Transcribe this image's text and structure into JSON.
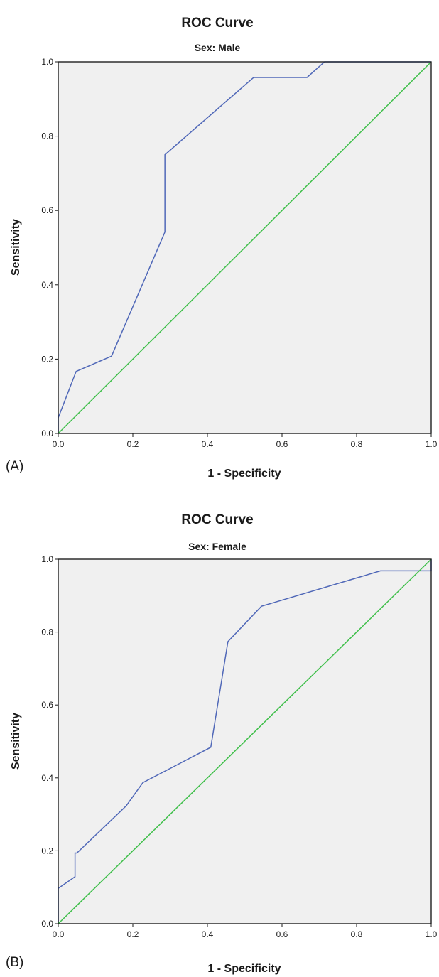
{
  "figure": {
    "panels": [
      {
        "label": "(A)"
      },
      {
        "label": "(B)"
      }
    ]
  },
  "chart_data": [
    {
      "type": "line",
      "title": "ROC Curve",
      "subtitle": "Sex: Male",
      "xlabel": "1 - Specificity",
      "ylabel": "Sensitivity",
      "xlim": [
        0,
        1
      ],
      "ylim": [
        0,
        1
      ],
      "xticks": [
        "0.0",
        "0.2",
        "0.4",
        "0.6",
        "0.8",
        "1.0"
      ],
      "yticks": [
        "0.0",
        "0.2",
        "0.4",
        "0.6",
        "0.8",
        "1.0"
      ],
      "grid": false,
      "colors": {
        "roc": "#5068b8",
        "reference": "#3fbf4a",
        "background": "#f0f0f0"
      },
      "series": [
        {
          "x": [
            0.0,
            0.0,
            0.048,
            0.143,
            0.286,
            0.286,
            0.524,
            0.667,
            0.714,
            1.0
          ],
          "y": [
            0.0,
            0.042,
            0.167,
            0.208,
            0.542,
            0.75,
            0.958,
            0.958,
            1.0,
            1.0
          ]
        },
        {
          "x": [
            0.0,
            1.0
          ],
          "y": [
            0.0,
            1.0
          ]
        }
      ]
    },
    {
      "type": "line",
      "title": "ROC Curve",
      "subtitle": "Sex: Female",
      "xlabel": "1 - Specificity",
      "ylabel": "Sensitivity",
      "xlim": [
        0,
        1
      ],
      "ylim": [
        0,
        1
      ],
      "xticks": [
        "0.0",
        "0.2",
        "0.4",
        "0.6",
        "0.8",
        "1.0"
      ],
      "yticks": [
        "0.0",
        "0.2",
        "0.4",
        "0.6",
        "0.8",
        "1.0"
      ],
      "grid": false,
      "colors": {
        "roc": "#5068b8",
        "reference": "#3fbf4a",
        "background": "#f0f0f0"
      },
      "series": [
        {
          "x": [
            0.0,
            0.0,
            0.045,
            0.045,
            0.05,
            0.182,
            0.227,
            0.409,
            0.455,
            0.545,
            0.864,
            1.0,
            1.0
          ],
          "y": [
            0.0,
            0.097,
            0.129,
            0.194,
            0.194,
            0.323,
            0.387,
            0.484,
            0.774,
            0.871,
            0.968,
            0.968,
            1.0
          ]
        },
        {
          "x": [
            0.0,
            1.0
          ],
          "y": [
            0.0,
            1.0
          ]
        }
      ]
    }
  ]
}
